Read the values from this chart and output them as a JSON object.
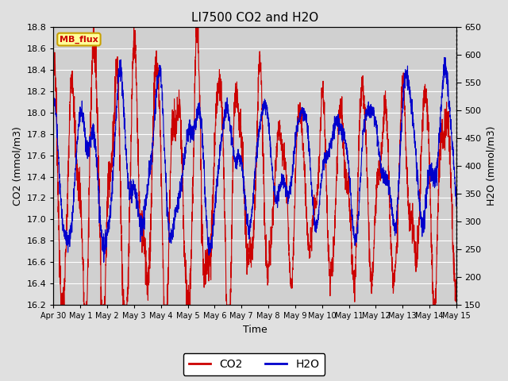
{
  "title": "LI7500 CO2 and H2O",
  "xlabel": "Time",
  "ylabel_left": "CO2 (mmol/m3)",
  "ylabel_right": "H2O (mmol/m3)",
  "ylim_left": [
    16.2,
    18.8
  ],
  "ylim_right": [
    150,
    650
  ],
  "yticks_left": [
    16.2,
    16.4,
    16.6,
    16.8,
    17.0,
    17.2,
    17.4,
    17.6,
    17.8,
    18.0,
    18.2,
    18.4,
    18.6,
    18.8
  ],
  "yticks_right": [
    150,
    200,
    250,
    300,
    350,
    400,
    450,
    500,
    550,
    600,
    650
  ],
  "xtick_labels": [
    "Apr 30",
    "May 1",
    "May 2",
    "May 3",
    "May 4",
    "May 5",
    "May 6",
    "May 7",
    "May 8",
    "May 9",
    "May 10",
    "May 11",
    "May 12",
    "May 13",
    "May 14",
    "May 15"
  ],
  "co2_color": "#cc0000",
  "h2o_color": "#0000cc",
  "bg_color": "#e0e0e0",
  "plot_bg_color": "#d0d0d0",
  "grid_color": "#ffffff",
  "annotation_text": "MB_flux",
  "annotation_bg": "#ffff99",
  "annotation_border": "#c8a000",
  "legend_co2": "CO2",
  "legend_h2o": "H2O",
  "title_fontsize": 11,
  "axis_fontsize": 9,
  "tick_fontsize": 8,
  "xtick_fontsize": 7
}
